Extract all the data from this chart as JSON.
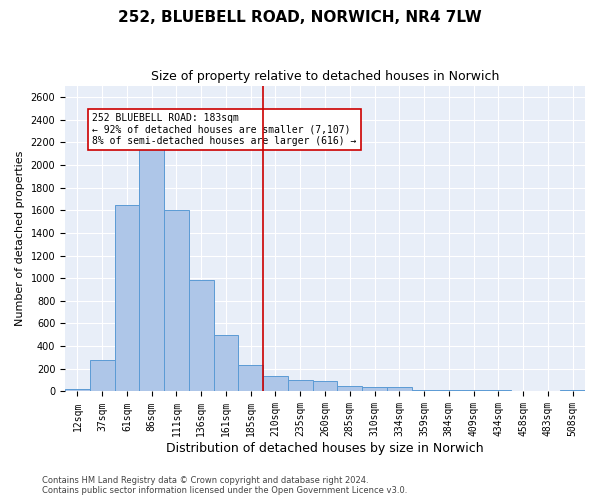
{
  "title": "252, BLUEBELL ROAD, NORWICH, NR4 7LW",
  "subtitle": "Size of property relative to detached houses in Norwich",
  "xlabel": "Distribution of detached houses by size in Norwich",
  "ylabel": "Number of detached properties",
  "categories": [
    "12sqm",
    "37sqm",
    "61sqm",
    "86sqm",
    "111sqm",
    "136sqm",
    "161sqm",
    "185sqm",
    "210sqm",
    "235sqm",
    "260sqm",
    "285sqm",
    "310sqm",
    "334sqm",
    "359sqm",
    "384sqm",
    "409sqm",
    "434sqm",
    "458sqm",
    "483sqm",
    "508sqm"
  ],
  "values": [
    20,
    280,
    1650,
    2150,
    1600,
    980,
    500,
    230,
    140,
    100,
    95,
    50,
    42,
    40,
    15,
    10,
    10,
    10,
    8,
    5,
    10
  ],
  "bar_color": "#aec6e8",
  "bar_edge_color": "#5b9bd5",
  "vline_index": 7,
  "vline_color": "#cc0000",
  "annotation_text": "252 BLUEBELL ROAD: 183sqm\n← 92% of detached houses are smaller (7,107)\n8% of semi-detached houses are larger (616) →",
  "annotation_box_color": "#cc0000",
  "ylim": [
    0,
    2700
  ],
  "yticks": [
    0,
    200,
    400,
    600,
    800,
    1000,
    1200,
    1400,
    1600,
    1800,
    2000,
    2200,
    2400,
    2600
  ],
  "bg_color": "#e8eef8",
  "footer_line1": "Contains HM Land Registry data © Crown copyright and database right 2024.",
  "footer_line2": "Contains public sector information licensed under the Open Government Licence v3.0.",
  "title_fontsize": 11,
  "subtitle_fontsize": 9,
  "xlabel_fontsize": 9,
  "ylabel_fontsize": 8,
  "tick_fontsize": 7,
  "annotation_fontsize": 7,
  "footer_fontsize": 6
}
